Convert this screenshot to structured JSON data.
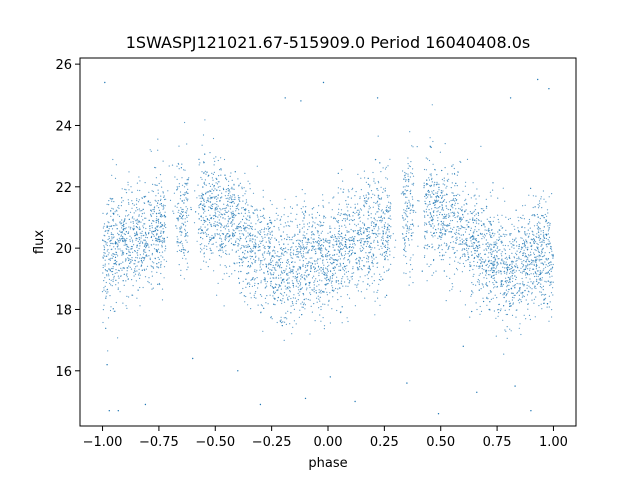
{
  "chart_data": {
    "type": "scatter",
    "title": "1SWASPJ121021.67-515909.0 Period 16040408.0s",
    "xlabel": "phase",
    "ylabel": "flux",
    "xlim": [
      -1.1,
      1.1
    ],
    "ylim": [
      14.2,
      26.2
    ],
    "xticks": [
      -1.0,
      -0.75,
      -0.5,
      -0.25,
      0.0,
      0.25,
      0.5,
      0.75,
      1.0
    ],
    "xtick_labels": [
      "−1.00",
      "−0.75",
      "−0.50",
      "−0.25",
      "0.00",
      "0.25",
      "0.50",
      "0.75",
      "1.00"
    ],
    "yticks": [
      16,
      18,
      20,
      22,
      24,
      26
    ],
    "ytick_labels": [
      "16",
      "18",
      "20",
      "22",
      "24",
      "26"
    ],
    "grid": false,
    "point_color": "#1f77b4",
    "series": [
      {
        "phase_profile": [
          {
            "x": -1.0,
            "y": 19.6
          },
          {
            "x": -0.95,
            "y": 20.0
          },
          {
            "x": -0.9,
            "y": 20.2
          },
          {
            "x": -0.85,
            "y": 20.3
          },
          {
            "x": -0.8,
            "y": 20.4
          },
          {
            "x": -0.75,
            "y": 20.6
          },
          {
            "x": -0.7,
            "y": 20.9
          },
          {
            "x": -0.65,
            "y": 21.2
          },
          {
            "x": -0.6,
            "y": 21.4
          },
          {
            "x": -0.55,
            "y": 21.3
          },
          {
            "x": -0.5,
            "y": 21.1
          },
          {
            "x": -0.45,
            "y": 21.0
          },
          {
            "x": -0.4,
            "y": 20.6
          },
          {
            "x": -0.35,
            "y": 20.1
          },
          {
            "x": -0.3,
            "y": 19.7
          },
          {
            "x": -0.25,
            "y": 19.5
          },
          {
            "x": -0.2,
            "y": 19.2
          },
          {
            "x": -0.15,
            "y": 19.4
          },
          {
            "x": -0.1,
            "y": 19.7
          },
          {
            "x": -0.05,
            "y": 19.8
          },
          {
            "x": 0.0,
            "y": 19.6
          },
          {
            "x": 0.05,
            "y": 20.0
          },
          {
            "x": 0.1,
            "y": 20.2
          },
          {
            "x": 0.15,
            "y": 20.3
          },
          {
            "x": 0.2,
            "y": 20.4
          },
          {
            "x": 0.25,
            "y": 20.6
          },
          {
            "x": 0.3,
            "y": 20.9
          },
          {
            "x": 0.35,
            "y": 21.2
          },
          {
            "x": 0.4,
            "y": 21.4
          },
          {
            "x": 0.45,
            "y": 21.3
          },
          {
            "x": 0.5,
            "y": 21.1
          },
          {
            "x": 0.55,
            "y": 21.0
          },
          {
            "x": 0.6,
            "y": 20.6
          },
          {
            "x": 0.65,
            "y": 20.1
          },
          {
            "x": 0.7,
            "y": 19.7
          },
          {
            "x": 0.75,
            "y": 19.5
          },
          {
            "x": 0.8,
            "y": 19.2
          },
          {
            "x": 0.85,
            "y": 19.4
          },
          {
            "x": 0.9,
            "y": 19.7
          },
          {
            "x": 0.95,
            "y": 19.8
          },
          {
            "x": 1.0,
            "y": 19.6
          }
        ],
        "scatter_sigma": 0.9,
        "outliers": [
          {
            "x": -0.99,
            "y": 25.4
          },
          {
            "x": -0.97,
            "y": 14.7
          },
          {
            "x": -0.93,
            "y": 14.7
          },
          {
            "x": -0.81,
            "y": 14.9
          },
          {
            "x": -0.3,
            "y": 14.9
          },
          {
            "x": -0.19,
            "y": 24.9
          },
          {
            "x": -0.12,
            "y": 24.8
          },
          {
            "x": -0.1,
            "y": 15.1
          },
          {
            "x": -0.02,
            "y": 25.4
          },
          {
            "x": 0.12,
            "y": 15.0
          },
          {
            "x": 0.22,
            "y": 24.9
          },
          {
            "x": 0.49,
            "y": 14.6
          },
          {
            "x": 0.66,
            "y": 15.3
          },
          {
            "x": 0.81,
            "y": 24.9
          },
          {
            "x": 0.83,
            "y": 15.5
          },
          {
            "x": 0.9,
            "y": 14.7
          },
          {
            "x": 0.93,
            "y": 25.5
          },
          {
            "x": 0.98,
            "y": 25.2
          },
          {
            "x": -0.98,
            "y": 16.2
          },
          {
            "x": 0.01,
            "y": 15.8
          },
          {
            "x": 0.35,
            "y": 15.6
          },
          {
            "x": -0.6,
            "y": 16.4
          },
          {
            "x": 0.6,
            "y": 16.8
          },
          {
            "x": -0.4,
            "y": 16.0
          }
        ]
      }
    ]
  }
}
